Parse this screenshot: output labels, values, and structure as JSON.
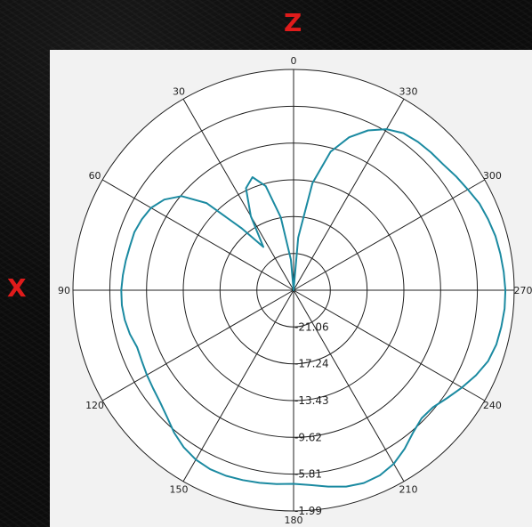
{
  "axis_labels": {
    "top": "Z",
    "left": "X"
  },
  "colors": {
    "pattern": "#1b8aa1",
    "axis_letters": "#e01b1b",
    "panel": "#f2f2f2",
    "background": "#0c0c0c"
  },
  "chart_data": {
    "type": "polar",
    "title": "",
    "angle_ticks": [
      "0",
      "30",
      "60",
      "90",
      "120",
      "150",
      "180",
      "210",
      "240",
      "270",
      "300",
      "330"
    ],
    "angle_direction": "counterclockwise",
    "angle_zero": "top",
    "radial_ticks": [
      "-21.06",
      "-17.24",
      "-13.43",
      "-9.62",
      "-5.81",
      "-1.99"
    ],
    "rlim": [
      -24.87,
      -1.99
    ],
    "grid": true,
    "series": [
      {
        "theta": [
          0,
          5,
          10,
          15,
          20,
          25,
          30,
          35,
          40,
          45,
          50,
          55,
          60,
          65,
          70,
          75,
          80,
          85,
          90,
          95,
          100,
          105,
          110,
          115,
          120,
          125,
          130,
          135,
          140,
          145,
          150,
          155,
          160,
          165,
          170,
          175,
          180,
          185,
          190,
          195,
          200,
          205,
          210,
          215,
          220,
          225,
          230,
          235,
          240,
          245,
          250,
          255,
          260,
          265,
          270,
          275,
          280,
          285,
          290,
          295,
          300,
          305,
          310,
          315,
          320,
          325,
          330,
          335,
          340,
          345,
          350,
          355
        ],
        "r": [
          -24.87,
          -21.7,
          -17.2,
          -13.7,
          -12.4,
          -13.2,
          -16.0,
          -19.4,
          -16.5,
          -12.1,
          -9.7,
          -8.5,
          -7.8,
          -7.5,
          -7.3,
          -7.3,
          -7.2,
          -7.1,
          -7.0,
          -7.0,
          -7.1,
          -7.3,
          -7.6,
          -7.5,
          -7.3,
          -7.1,
          -6.8,
          -6.3,
          -5.6,
          -5.0,
          -4.6,
          -4.4,
          -4.4,
          -4.5,
          -4.6,
          -4.7,
          -4.8,
          -4.6,
          -4.2,
          -3.8,
          -3.6,
          -3.7,
          -4.1,
          -4.8,
          -5.6,
          -6.1,
          -6.0,
          -5.4,
          -4.7,
          -4.0,
          -3.4,
          -3.1,
          -3.0,
          -2.9,
          -2.9,
          -3.0,
          -3.1,
          -3.2,
          -3.4,
          -3.6,
          -4.0,
          -4.3,
          -4.6,
          -4.7,
          -4.8,
          -5.0,
          -5.6,
          -6.6,
          -8.0,
          -10.0,
          -13.6,
          -19.4
        ]
      }
    ]
  }
}
